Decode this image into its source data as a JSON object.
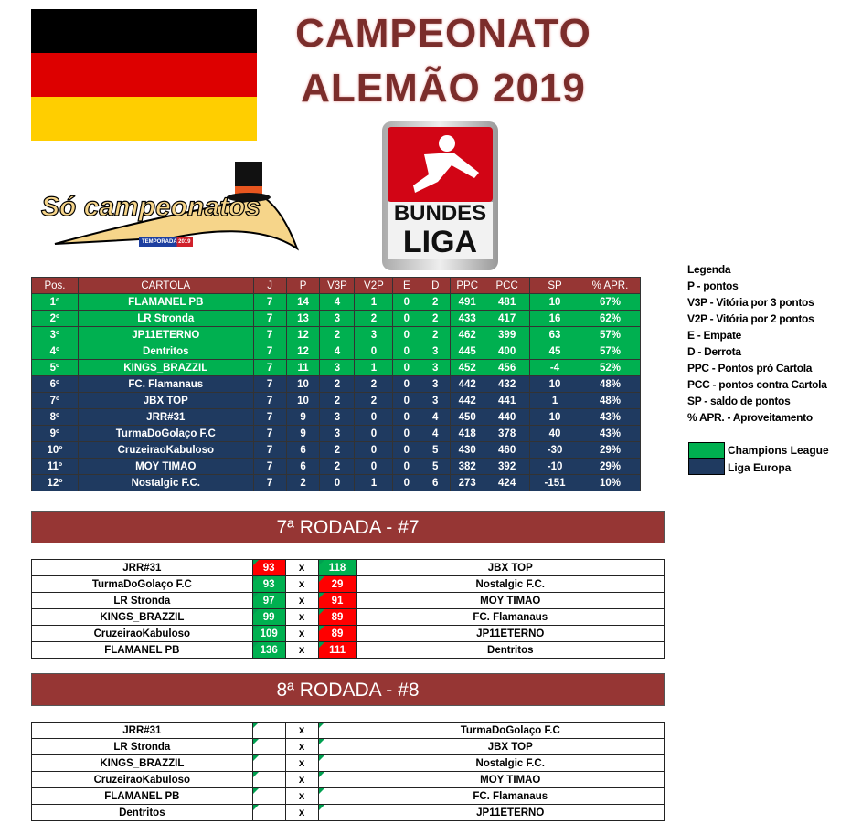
{
  "title": {
    "line1": "CAMPEONATO",
    "line2": "ALEMÃO 2019"
  },
  "logos": {
    "so_campeonatos": "Só campeonatos",
    "temporada": "TEMPORADA 2019",
    "bundesliga_1": "BUNDES",
    "bundesliga_2": "LIGA"
  },
  "colors": {
    "champions": "#00b050",
    "europa": "#1f3a60",
    "header": "#963634",
    "win": "#00b050",
    "loss": "#ff0000"
  },
  "standings": {
    "headers": [
      "Pos.",
      "CARTOLA",
      "J",
      "P",
      "V3P",
      "V2P",
      "E",
      "D",
      "PPC",
      "PCC",
      "SP",
      "% APR."
    ],
    "rows": [
      {
        "zone": "cl",
        "cells": [
          "1º",
          "FLAMANEL PB",
          "7",
          "14",
          "4",
          "1",
          "0",
          "2",
          "491",
          "481",
          "10",
          "67%"
        ]
      },
      {
        "zone": "cl",
        "cells": [
          "2º",
          "LR Stronda",
          "7",
          "13",
          "3",
          "2",
          "0",
          "2",
          "433",
          "417",
          "16",
          "62%"
        ]
      },
      {
        "zone": "cl",
        "cells": [
          "3º",
          "JP11ETERNO",
          "7",
          "12",
          "2",
          "3",
          "0",
          "2",
          "462",
          "399",
          "63",
          "57%"
        ]
      },
      {
        "zone": "cl",
        "cells": [
          "4º",
          "Dentritos",
          "7",
          "12",
          "4",
          "0",
          "0",
          "3",
          "445",
          "400",
          "45",
          "57%"
        ]
      },
      {
        "zone": "cl",
        "cells": [
          "5º",
          "KINGS_BRAZZIL",
          "7",
          "11",
          "3",
          "1",
          "0",
          "3",
          "452",
          "456",
          "-4",
          "52%"
        ]
      },
      {
        "zone": "le",
        "cells": [
          "6º",
          "FC. Flamanaus",
          "7",
          "10",
          "2",
          "2",
          "0",
          "3",
          "442",
          "432",
          "10",
          "48%"
        ]
      },
      {
        "zone": "le",
        "cells": [
          "7º",
          "JBX TOP",
          "7",
          "10",
          "2",
          "2",
          "0",
          "3",
          "442",
          "441",
          "1",
          "48%"
        ]
      },
      {
        "zone": "le",
        "cells": [
          "8º",
          "JRR#31",
          "7",
          "9",
          "3",
          "0",
          "0",
          "4",
          "450",
          "440",
          "10",
          "43%"
        ]
      },
      {
        "zone": "le",
        "cells": [
          "9º",
          "TurmaDoGolaço F.C",
          "7",
          "9",
          "3",
          "0",
          "0",
          "4",
          "418",
          "378",
          "40",
          "43%"
        ]
      },
      {
        "zone": "le",
        "cells": [
          "10º",
          "CruzeiraoKabuloso",
          "7",
          "6",
          "2",
          "0",
          "0",
          "5",
          "430",
          "460",
          "-30",
          "29%"
        ]
      },
      {
        "zone": "le",
        "cells": [
          "11º",
          "MOY TIMAO",
          "7",
          "6",
          "2",
          "0",
          "0",
          "5",
          "382",
          "392",
          "-10",
          "29%"
        ]
      },
      {
        "zone": "le",
        "cells": [
          "12º",
          "Nostalgic F.C.",
          "7",
          "2",
          "0",
          "1",
          "0",
          "6",
          "273",
          "424",
          "-151",
          "10%"
        ]
      }
    ]
  },
  "legend": {
    "title": "Legenda",
    "items": [
      "P - pontos",
      "V3P - Vitória por 3 pontos",
      "V2P - Vitória por 2 pontos",
      "E - Empate",
      "D - Derrota",
      "PPC - Pontos pró Cartola",
      "PCC - pontos contra Cartola",
      "SP - saldo de pontos",
      "% APR. - Aproveitamento"
    ],
    "champions": "Champions League",
    "europa": "Liga Europa"
  },
  "round7": {
    "title": "7ª RODADA - #7",
    "vs": "x",
    "matches": [
      {
        "home": "JRR#31",
        "hs": "93",
        "as": "118",
        "away": "JBX TOP"
      },
      {
        "home": "TurmaDoGolaço F.C",
        "hs": "93",
        "as": "29",
        "away": "Nostalgic F.C."
      },
      {
        "home": "LR Stronda",
        "hs": "97",
        "as": "91",
        "away": "MOY TIMAO"
      },
      {
        "home": "KINGS_BRAZZIL",
        "hs": "99",
        "as": "89",
        "away": "FC. Flamanaus"
      },
      {
        "home": "CruzeiraoKabuloso",
        "hs": "109",
        "as": "89",
        "away": "JP11ETERNO"
      },
      {
        "home": "FLAMANEL PB",
        "hs": "136",
        "as": "111",
        "away": "Dentritos"
      }
    ]
  },
  "round8": {
    "title": "8ª RODADA - #8",
    "vs": "x",
    "matches": [
      {
        "home": "JRR#31",
        "hs": "",
        "as": "",
        "away": "TurmaDoGolaço F.C"
      },
      {
        "home": "LR Stronda",
        "hs": "",
        "as": "",
        "away": "JBX TOP"
      },
      {
        "home": "KINGS_BRAZZIL",
        "hs": "",
        "as": "",
        "away": "Nostalgic F.C."
      },
      {
        "home": "CruzeiraoKabuloso",
        "hs": "",
        "as": "",
        "away": "MOY TIMAO"
      },
      {
        "home": "FLAMANEL PB",
        "hs": "",
        "as": "",
        "away": "FC. Flamanaus"
      },
      {
        "home": "Dentritos",
        "hs": "",
        "as": "",
        "away": "JP11ETERNO"
      }
    ]
  }
}
